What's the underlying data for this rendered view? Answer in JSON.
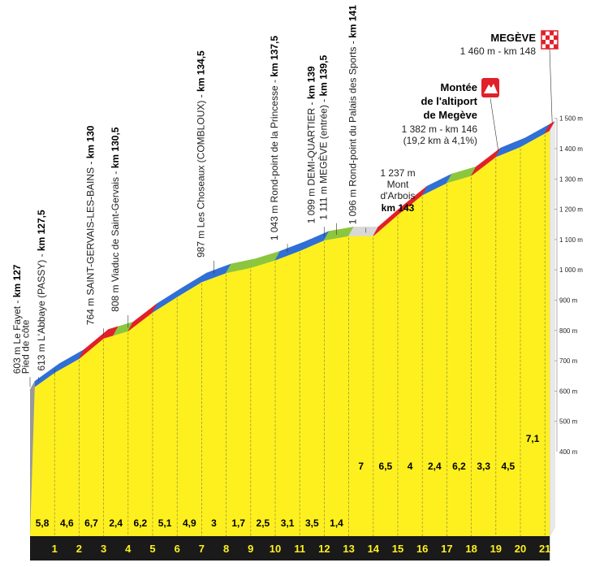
{
  "chart_data": {
    "type": "area",
    "title": "",
    "xlabel": "",
    "ylabel": "",
    "xlim": [
      0,
      21.2
    ],
    "ylim": [
      400,
      1500
    ],
    "yticks": [
      500,
      600,
      700,
      800,
      900,
      1000,
      1100,
      1200,
      1300,
      1400,
      1500
    ],
    "ytick_labels": [
      "500 m",
      "600 m",
      "700 m",
      "800 m",
      "900 m",
      "1 000 m",
      "1 100 m",
      "1 200 m",
      "1 300 m",
      "1 400 m",
      "1 500 m"
    ],
    "ytick_label_top": "400 m",
    "km_labels": [
      "1",
      "2",
      "3",
      "4",
      "5",
      "6",
      "7",
      "8",
      "9",
      "10",
      "11",
      "12",
      "13",
      "14",
      "15",
      "16",
      "17",
      "18",
      "19",
      "20",
      "21"
    ],
    "gradients": [
      "5,8",
      "4,6",
      "6,7",
      "2,4",
      "6,2",
      "5,1",
      "4,9",
      "3",
      "1,7",
      "2,5",
      "3,1",
      "3,5",
      "1,4",
      "7",
      "6,5",
      "4",
      "2,4",
      "6,2",
      "3,3",
      "4,5",
      "7,1"
    ],
    "profile": {
      "x": [
        0,
        1,
        2,
        3,
        4,
        5,
        6,
        7,
        8,
        9,
        10,
        11,
        12,
        13,
        14,
        15,
        16,
        17,
        18,
        19,
        20,
        21,
        21.2
      ],
      "y": [
        603,
        661,
        707,
        774,
        798,
        860,
        911,
        960,
        990,
        1007,
        1032,
        1063,
        1098,
        1112,
        1112,
        1182,
        1247,
        1287,
        1311,
        1373,
        1406,
        1451,
        1460
      ]
    },
    "segments": [
      {
        "from": 0,
        "to": 2,
        "color": "#2f6fd6"
      },
      {
        "from": 2,
        "to": 3.4,
        "color": "#e0202a"
      },
      {
        "from": 3.4,
        "to": 4,
        "color": "#8cc63f"
      },
      {
        "from": 4,
        "to": 5,
        "color": "#e0202a"
      },
      {
        "from": 5,
        "to": 8,
        "color": "#2f6fd6"
      },
      {
        "from": 8,
        "to": 10,
        "color": "#8cc63f"
      },
      {
        "from": 10,
        "to": 12,
        "color": "#2f6fd6"
      },
      {
        "from": 12,
        "to": 13,
        "color": "#8cc63f"
      },
      {
        "from": 13,
        "to": 14,
        "color": "#d8d8d8"
      },
      {
        "from": 14,
        "to": 16,
        "color": "#e0202a"
      },
      {
        "from": 16,
        "to": 17,
        "color": "#2f6fd6"
      },
      {
        "from": 17,
        "to": 18,
        "color": "#8cc63f"
      },
      {
        "from": 18,
        "to": 19,
        "color": "#e0202a"
      },
      {
        "from": 19,
        "to": 21,
        "color": "#2f6fd6"
      },
      {
        "from": 21,
        "to": 21.2,
        "color": "#e0202a"
      }
    ],
    "waypoints": [
      {
        "x": 0,
        "y": 603,
        "text": "603 m Le Fayet - ",
        "km": "km 127"
      },
      {
        "x": 0.35,
        "y": 603,
        "text": "Pied de côte",
        "km": ""
      },
      {
        "x": 1.0,
        "y": 613,
        "text": "613 m L'Abbaye (PASSY) - ",
        "km": "km 127,5"
      },
      {
        "x": 3.0,
        "y": 764,
        "text": "764 m SAINT-GERVAIS-LES-BAINS - ",
        "km": "km 130"
      },
      {
        "x": 4.0,
        "y": 808,
        "text": "808 m Viaduc de Saint-Gervais - ",
        "km": "km 130,5"
      },
      {
        "x": 7.5,
        "y": 987,
        "text": "987 m Les Choseaux (COMBLOUX) - ",
        "km": "km 134,5"
      },
      {
        "x": 10.5,
        "y": 1043,
        "text": "1 043 m Rond-point de la Princesse - ",
        "km": "km 137,5"
      },
      {
        "x": 12.0,
        "y": 1099,
        "text": "1 099 m DEMI-QUARTIER - ",
        "km": "km 139"
      },
      {
        "x": 12.5,
        "y": 1111,
        "text": "1 111 m MEGÈVE (entrée) - ",
        "km": "km 139,5"
      },
      {
        "x": 13.7,
        "y": 1096,
        "text": "1 096 m Rond-point du Palais des Sports - ",
        "km": "km 141"
      }
    ],
    "annotations": {
      "arbois": {
        "x": 16,
        "y": 1237,
        "line1": "1 237 m",
        "line2": "Mont",
        "line3": "d'Arbois",
        "km": "km 143"
      },
      "altiport": {
        "x": 19,
        "y": 1382,
        "line1": "Montée",
        "line2": "de l'altiport",
        "line3": "de Megève",
        "line4": "1 382 m - km 146",
        "line5": "(19,2 km à 4,1%)"
      },
      "finish": {
        "x": 21.2,
        "y": 1460,
        "name": "MEGÈVE",
        "detail": "1 460 m - km 148"
      }
    },
    "colors": {
      "fill": "#fef01f",
      "fill_dark": "#1a1a1a",
      "blue": "#2f6fd6",
      "red": "#e0202a",
      "green": "#8cc63f",
      "grey": "#d8d8d8"
    }
  }
}
